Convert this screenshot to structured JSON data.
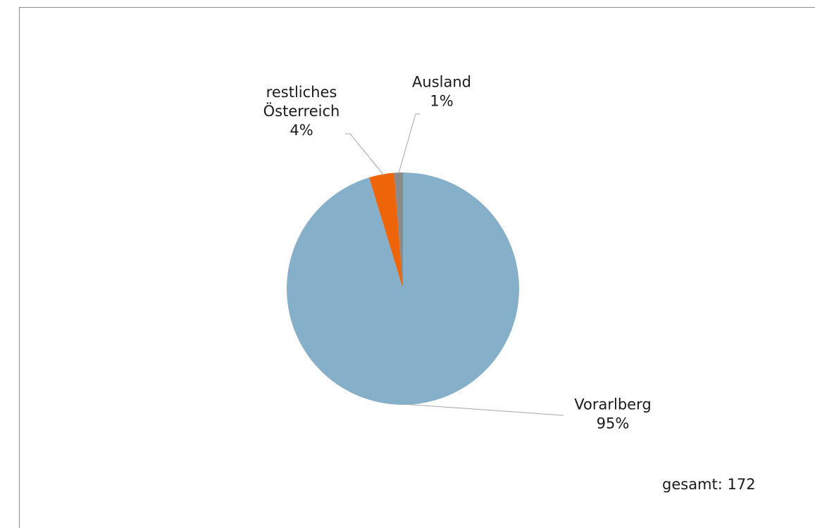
{
  "chart_data": {
    "type": "pie",
    "slices": [
      {
        "label_lines": [
          "Vorarlberg"
        ],
        "percent_text": "95%",
        "value": 95.3,
        "color": "#86b0c9"
      },
      {
        "label_lines": [
          "restliches",
          "Österreich"
        ],
        "percent_text": "4%",
        "value": 3.5,
        "color": "#ed6508"
      },
      {
        "label_lines": [
          "Ausland"
        ],
        "percent_text": "1%",
        "value": 1.2,
        "color": "#8a8a8a"
      }
    ],
    "start_angle_deg": 0,
    "direction": "clockwise",
    "legend": "none",
    "total_text": "gesamt: 172"
  }
}
